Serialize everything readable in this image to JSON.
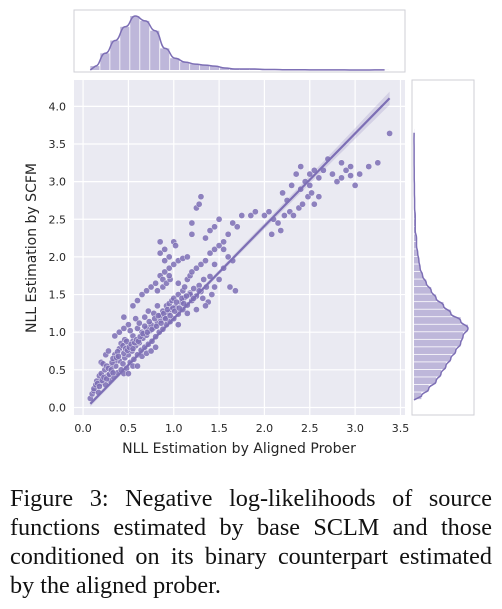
{
  "chart_data": {
    "type": "scatter",
    "subtype": "jointplot",
    "xlabel": "NLL Estimation by Aligned Prober",
    "ylabel": "NLL Estimation by SCFM",
    "xlim": [
      -0.1,
      3.55
    ],
    "ylim": [
      -0.1,
      4.35
    ],
    "xticks": [
      "0.0",
      "0.5",
      "1.0",
      "1.5",
      "2.0",
      "2.5",
      "3.0",
      "3.5"
    ],
    "yticks": [
      "0.0",
      "0.5",
      "1.0",
      "1.5",
      "2.0",
      "2.5",
      "3.0",
      "3.5",
      "4.0"
    ],
    "grid": true,
    "color": "#7d6fb5",
    "regression": {
      "slope": 1.23,
      "intercept": -0.05,
      "x_range": [
        0.08,
        3.38
      ]
    },
    "x_histogram": {
      "bin_start": 0.08,
      "bin_width": 0.11,
      "counts": [
        4,
        17,
        30,
        44,
        55,
        50,
        40,
        22,
        12,
        8,
        6,
        5,
        4,
        2,
        1,
        1,
        1,
        0.5,
        0.5,
        0.3,
        0.2,
        0.2,
        0.1,
        0.1,
        0.1,
        0.1,
        0,
        0,
        0.1,
        0.1
      ]
    },
    "y_histogram": {
      "bin_start": 0.1,
      "bin_width": 0.1,
      "counts": [
        6,
        12,
        18,
        22,
        26,
        30,
        34,
        38,
        40,
        44,
        38,
        30,
        24,
        18,
        14,
        10,
        7,
        5,
        4,
        3,
        2,
        2,
        1,
        1,
        1,
        0.5,
        0.5,
        0.3,
        0.3,
        0.2,
        0.2,
        0.1,
        0.1,
        0.1,
        0,
        0.1
      ]
    },
    "points": [
      [
        0.08,
        0.12
      ],
      [
        0.1,
        0.18
      ],
      [
        0.12,
        0.22
      ],
      [
        0.15,
        0.28
      ],
      [
        0.17,
        0.2
      ],
      [
        0.2,
        0.32
      ],
      [
        0.22,
        0.38
      ],
      [
        0.25,
        0.3
      ],
      [
        0.27,
        0.42
      ],
      [
        0.3,
        0.36
      ],
      [
        0.32,
        0.48
      ],
      [
        0.34,
        0.4
      ],
      [
        0.36,
        0.55
      ],
      [
        0.38,
        0.46
      ],
      [
        0.4,
        0.62
      ],
      [
        0.42,
        0.5
      ],
      [
        0.44,
        0.58
      ],
      [
        0.46,
        0.66
      ],
      [
        0.48,
        0.52
      ],
      [
        0.5,
        0.7
      ],
      [
        0.52,
        0.6
      ],
      [
        0.54,
        0.75
      ],
      [
        0.56,
        0.64
      ],
      [
        0.58,
        0.82
      ],
      [
        0.6,
        0.7
      ],
      [
        0.62,
        0.86
      ],
      [
        0.64,
        0.76
      ],
      [
        0.66,
        0.92
      ],
      [
        0.68,
        0.8
      ],
      [
        0.7,
        0.96
      ],
      [
        0.72,
        0.84
      ],
      [
        0.74,
        1.02
      ],
      [
        0.76,
        0.88
      ],
      [
        0.78,
        1.06
      ],
      [
        0.8,
        0.94
      ],
      [
        0.82,
        1.12
      ],
      [
        0.84,
        1.0
      ],
      [
        0.86,
        1.16
      ],
      [
        0.88,
        1.04
      ],
      [
        0.9,
        1.2
      ],
      [
        0.92,
        1.1
      ],
      [
        0.94,
        1.26
      ],
      [
        0.96,
        1.14
      ],
      [
        0.98,
        1.3
      ],
      [
        1.0,
        1.18
      ],
      [
        1.02,
        1.34
      ],
      [
        1.05,
        1.24
      ],
      [
        1.08,
        1.4
      ],
      [
        1.1,
        1.3
      ],
      [
        1.12,
        1.46
      ],
      [
        1.15,
        1.36
      ],
      [
        1.18,
        1.52
      ],
      [
        1.2,
        1.42
      ],
      [
        1.22,
        1.58
      ],
      [
        1.25,
        1.48
      ],
      [
        1.28,
        1.62
      ],
      [
        1.3,
        1.54
      ],
      [
        1.33,
        1.7
      ],
      [
        1.36,
        1.6
      ],
      [
        1.4,
        1.74
      ],
      [
        0.3,
        0.55
      ],
      [
        0.35,
        0.62
      ],
      [
        0.45,
        0.45
      ],
      [
        0.5,
        0.45
      ],
      [
        0.55,
        0.55
      ],
      [
        0.6,
        0.55
      ],
      [
        0.65,
        0.68
      ],
      [
        0.7,
        0.72
      ],
      [
        0.75,
        0.75
      ],
      [
        0.8,
        0.8
      ],
      [
        0.55,
        0.95
      ],
      [
        0.6,
        1.05
      ],
      [
        0.5,
        1.1
      ],
      [
        0.52,
        1.02
      ],
      [
        0.58,
        1.18
      ],
      [
        0.62,
        1.12
      ],
      [
        0.68,
        1.2
      ],
      [
        0.72,
        1.28
      ],
      [
        0.78,
        1.25
      ],
      [
        0.82,
        1.35
      ],
      [
        0.5,
        0.82
      ],
      [
        0.55,
        0.88
      ],
      [
        0.4,
        0.78
      ],
      [
        0.42,
        0.85
      ],
      [
        0.35,
        0.7
      ],
      [
        0.38,
        0.74
      ],
      [
        0.44,
        0.82
      ],
      [
        0.46,
        0.9
      ],
      [
        0.48,
        0.88
      ],
      [
        0.65,
        1.0
      ],
      [
        0.7,
        1.05
      ],
      [
        0.75,
        1.1
      ],
      [
        0.85,
        1.22
      ],
      [
        0.88,
        1.28
      ],
      [
        0.92,
        1.35
      ],
      [
        0.95,
        1.38
      ],
      [
        0.98,
        1.42
      ],
      [
        1.0,
        1.45
      ],
      [
        1.05,
        1.5
      ],
      [
        1.1,
        1.55
      ],
      [
        0.2,
        0.6
      ],
      [
        0.25,
        0.7
      ],
      [
        0.28,
        0.75
      ],
      [
        0.22,
        0.58
      ],
      [
        0.35,
        0.95
      ],
      [
        0.4,
        1.0
      ],
      [
        0.45,
        1.05
      ],
      [
        0.45,
        1.2
      ],
      [
        0.55,
        1.35
      ],
      [
        0.6,
        1.42
      ],
      [
        0.65,
        1.5
      ],
      [
        0.7,
        1.55
      ],
      [
        0.75,
        1.6
      ],
      [
        0.8,
        1.65
      ],
      [
        0.82,
        1.55
      ],
      [
        0.85,
        1.75
      ],
      [
        0.88,
        1.7
      ],
      [
        0.9,
        1.8
      ],
      [
        0.95,
        1.85
      ],
      [
        1.0,
        1.9
      ],
      [
        1.05,
        1.95
      ],
      [
        1.1,
        1.98
      ],
      [
        0.85,
        2.05
      ],
      [
        0.9,
        2.1
      ],
      [
        0.95,
        2.0
      ],
      [
        1.0,
        2.2
      ],
      [
        1.02,
        2.15
      ],
      [
        0.88,
        1.6
      ],
      [
        0.92,
        1.65
      ],
      [
        0.96,
        1.7
      ],
      [
        1.15,
        1.7
      ],
      [
        1.18,
        1.75
      ],
      [
        1.2,
        1.8
      ],
      [
        1.25,
        1.85
      ],
      [
        1.3,
        1.9
      ],
      [
        1.35,
        1.95
      ],
      [
        1.4,
        2.05
      ],
      [
        1.45,
        2.1
      ],
      [
        1.5,
        2.15
      ],
      [
        1.55,
        2.2
      ],
      [
        1.35,
        2.25
      ],
      [
        1.4,
        2.35
      ],
      [
        1.45,
        2.4
      ],
      [
        1.5,
        2.5
      ],
      [
        1.6,
        2.3
      ],
      [
        1.65,
        2.45
      ],
      [
        1.7,
        2.4
      ],
      [
        1.75,
        2.55
      ],
      [
        1.85,
        2.55
      ],
      [
        1.9,
        2.6
      ],
      [
        1.2,
        2.45
      ],
      [
        1.25,
        2.65
      ],
      [
        1.3,
        2.8
      ],
      [
        1.28,
        2.7
      ],
      [
        1.55,
        2.1
      ],
      [
        1.6,
        2.0
      ],
      [
        1.65,
        1.95
      ],
      [
        1.2,
        2.3
      ],
      [
        1.15,
        2.0
      ],
      [
        1.45,
        1.9
      ],
      [
        0.85,
        2.2
      ],
      [
        0.9,
        1.95
      ],
      [
        0.95,
        1.75
      ],
      [
        1.05,
        1.65
      ],
      [
        1.12,
        1.6
      ],
      [
        1.18,
        1.5
      ],
      [
        1.22,
        1.45
      ],
      [
        1.28,
        1.55
      ],
      [
        1.32,
        1.45
      ],
      [
        1.38,
        1.4
      ],
      [
        1.45,
        1.6
      ],
      [
        1.5,
        1.7
      ],
      [
        1.55,
        1.85
      ],
      [
        1.62,
        1.6
      ],
      [
        1.68,
        1.55
      ],
      [
        1.42,
        1.5
      ],
      [
        1.35,
        1.35
      ],
      [
        1.25,
        1.3
      ],
      [
        1.15,
        1.25
      ],
      [
        1.05,
        1.1
      ],
      [
        2.0,
        2.55
      ],
      [
        2.05,
        2.6
      ],
      [
        2.1,
        2.5
      ],
      [
        2.2,
        2.85
      ],
      [
        2.25,
        2.75
      ],
      [
        2.4,
        2.9
      ],
      [
        2.45,
        3.0
      ],
      [
        2.5,
        2.95
      ],
      [
        2.55,
        2.7
      ],
      [
        2.6,
        2.8
      ],
      [
        2.3,
        2.95
      ],
      [
        2.35,
        3.1
      ],
      [
        2.4,
        3.2
      ],
      [
        2.5,
        3.1
      ],
      [
        2.55,
        3.15
      ],
      [
        2.6,
        3.05
      ],
      [
        2.65,
        3.15
      ],
      [
        2.7,
        3.3
      ],
      [
        2.75,
        3.1
      ],
      [
        2.8,
        3.0
      ],
      [
        2.85,
        3.05
      ],
      [
        2.9,
        3.15
      ],
      [
        2.95,
        3.2
      ],
      [
        3.0,
        2.95
      ],
      [
        3.05,
        3.1
      ],
      [
        3.15,
        3.2
      ],
      [
        3.25,
        3.25
      ],
      [
        3.38,
        3.64
      ],
      [
        2.85,
        3.25
      ],
      [
        2.95,
        3.08
      ],
      [
        2.08,
        2.3
      ],
      [
        2.15,
        2.45
      ],
      [
        2.18,
        2.35
      ],
      [
        2.22,
        2.55
      ],
      [
        2.28,
        2.6
      ],
      [
        2.32,
        2.55
      ],
      [
        2.38,
        2.65
      ],
      [
        2.42,
        2.7
      ],
      [
        2.48,
        2.8
      ],
      [
        2.52,
        2.85
      ],
      [
        0.15,
        0.35
      ],
      [
        0.18,
        0.42
      ],
      [
        0.2,
        0.45
      ],
      [
        0.24,
        0.5
      ],
      [
        0.26,
        0.55
      ],
      [
        0.28,
        0.52
      ],
      [
        0.32,
        0.6
      ],
      [
        0.33,
        0.65
      ],
      [
        0.37,
        0.66
      ],
      [
        0.39,
        0.68
      ],
      [
        0.12,
        0.25
      ],
      [
        0.14,
        0.3
      ],
      [
        0.16,
        0.32
      ],
      [
        0.18,
        0.28
      ],
      [
        0.21,
        0.36
      ],
      [
        0.23,
        0.4
      ],
      [
        0.26,
        0.38
      ],
      [
        0.29,
        0.44
      ],
      [
        0.31,
        0.5
      ],
      [
        0.33,
        0.46
      ],
      [
        0.45,
        0.72
      ],
      [
        0.47,
        0.78
      ],
      [
        0.49,
        0.76
      ],
      [
        0.51,
        0.8
      ],
      [
        0.53,
        0.84
      ],
      [
        0.55,
        0.78
      ],
      [
        0.57,
        0.86
      ],
      [
        0.59,
        0.9
      ],
      [
        0.61,
        0.88
      ],
      [
        0.63,
        0.94
      ],
      [
        0.66,
        0.98
      ],
      [
        0.68,
        1.08
      ],
      [
        0.71,
        1.0
      ],
      [
        0.73,
        1.14
      ],
      [
        0.76,
        1.04
      ],
      [
        0.79,
        1.18
      ],
      [
        0.81,
        1.08
      ],
      [
        0.83,
        1.22
      ],
      [
        0.86,
        1.12
      ],
      [
        0.89,
        1.25
      ],
      [
        0.91,
        1.18
      ],
      [
        0.93,
        1.3
      ],
      [
        0.96,
        1.22
      ],
      [
        0.99,
        1.32
      ],
      [
        1.01,
        1.28
      ],
      [
        1.03,
        1.4
      ],
      [
        1.06,
        1.32
      ],
      [
        1.09,
        1.45
      ],
      [
        1.11,
        1.38
      ],
      [
        1.14,
        1.48
      ]
    ]
  },
  "caption": "Figure 3: Negative log-likelihoods of source functions estimated by base SCLM and those conditioned on its binary counterpart estimated by the aligned prober."
}
